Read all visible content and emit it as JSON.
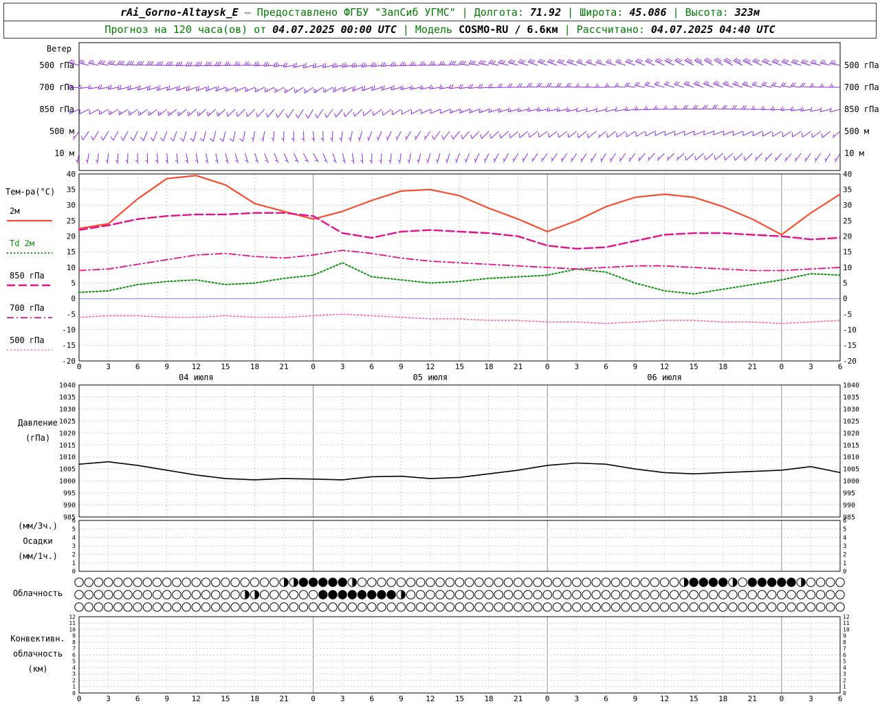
{
  "header": {
    "station": "rAi_Gorno-Altaysk_E",
    "dash": "—",
    "provided": "Предоставлено ФГБУ \"ЗапСиб УГМС\"",
    "sep": "|",
    "lon_label": "Долгота:",
    "lon": "71.92",
    "lat_label": "Широта:",
    "lat": "45.086",
    "alt_label": "Высота:",
    "alt": "323м",
    "line2": {
      "forecast_label": "Прогноз на 120 часа(ов) от",
      "forecast_time": "04.07.2025 00:00 UTC",
      "sep": "|",
      "model_label": "Модель",
      "model": "COSMO-RU / 6.6км",
      "calc_label": "Рассчитано:",
      "calc_time": "04.07.2025 04:40 UTC"
    }
  },
  "colors": {
    "header_text": "#007a00",
    "wind_barbs": "#8a2be2",
    "t2m": "#f74d2e",
    "td2m": "#0a8f0a",
    "t850": "#e60f8a",
    "t700": "#e60f8a",
    "t500": "#ff62b0",
    "pressure": "#000000",
    "zero_line": "#8080ff"
  },
  "panels": {
    "wind": {
      "title": "Ветер"
    },
    "temperature": {
      "title": "Тем-ра(°C)",
      "legend": [
        {
          "label": "2м",
          "text_color": "#000000"
        },
        {
          "label": "Td 2м",
          "text_color": "#0a8f0a"
        },
        {
          "label": "850 гПа",
          "text_color": "#000000"
        },
        {
          "label": "700 гПа",
          "text_color": "#000000"
        },
        {
          "label": "500 гПа",
          "text_color": "#000000"
        }
      ]
    },
    "pressure": {
      "title1": "Давление",
      "title2": "(гПа)"
    },
    "precip": {
      "title1": "(мм/3ч.)",
      "title2": "Осадки",
      "title3": "(мм/1ч.)"
    },
    "cloud": {
      "title": "Облачность"
    },
    "convective": {
      "title1": "Конвективн.",
      "title2": "облачность",
      "title3": "(км)"
    }
  },
  "time_axis": {
    "start_hour": 0,
    "end_hour": 78,
    "step": 3,
    "labels": [
      "0",
      "3",
      "6",
      "9",
      "12",
      "15",
      "18",
      "21",
      "0",
      "3",
      "6",
      "9",
      "12",
      "15",
      "18",
      "21",
      "0",
      "3",
      "6",
      "9",
      "12",
      "15",
      "18",
      "21",
      "0",
      "3",
      "6"
    ],
    "dates": [
      {
        "label": "04 июля",
        "hour": 12
      },
      {
        "label": "05 июля",
        "hour": 36
      },
      {
        "label": "06 июля",
        "hour": 60
      }
    ]
  },
  "chart_data": [
    {
      "id": "wind",
      "type": "wind-barbs",
      "color": "#8a2be2",
      "key_hours": [
        0,
        6,
        12,
        18,
        24,
        30,
        36,
        42,
        48,
        54,
        60,
        66,
        72,
        78
      ],
      "levels": [
        {
          "label": "500 гПа",
          "dir": [
            285,
            275,
            265,
            270,
            255,
            260,
            270,
            280,
            290,
            285,
            295,
            300,
            290,
            280
          ],
          "spd": [
            25,
            30,
            30,
            25,
            20,
            25,
            25,
            30,
            30,
            25,
            30,
            35,
            30,
            25
          ]
        },
        {
          "label": "700 гПа",
          "dir": [
            265,
            255,
            250,
            245,
            235,
            250,
            260,
            265,
            275,
            270,
            285,
            290,
            280,
            270
          ],
          "spd": [
            15,
            20,
            20,
            15,
            15,
            20,
            15,
            20,
            20,
            15,
            20,
            25,
            20,
            15
          ]
        },
        {
          "label": "850 гПа",
          "dir": [
            245,
            235,
            230,
            225,
            210,
            230,
            245,
            250,
            260,
            255,
            270,
            275,
            265,
            255
          ],
          "spd": [
            10,
            15,
            15,
            10,
            10,
            10,
            10,
            15,
            15,
            10,
            15,
            20,
            15,
            10
          ]
        },
        {
          "label": "500 м",
          "dir": [
            215,
            205,
            195,
            190,
            175,
            200,
            215,
            225,
            235,
            230,
            245,
            250,
            240,
            230
          ],
          "spd": [
            7,
            10,
            10,
            7,
            5,
            7,
            7,
            10,
            10,
            7,
            10,
            12,
            10,
            7
          ]
        },
        {
          "label": "10 м",
          "dir": [
            190,
            180,
            170,
            160,
            150,
            180,
            195,
            205,
            215,
            210,
            225,
            230,
            220,
            210
          ],
          "spd": [
            5,
            7,
            7,
            5,
            3,
            5,
            5,
            7,
            7,
            5,
            7,
            8,
            7,
            5
          ]
        }
      ]
    },
    {
      "id": "temperature",
      "type": "line",
      "ylim": [
        -20,
        40
      ],
      "ystep": 5,
      "x_hours": [
        0,
        3,
        6,
        9,
        12,
        15,
        18,
        21,
        24,
        27,
        30,
        33,
        36,
        39,
        42,
        45,
        48,
        51,
        54,
        57,
        60,
        63,
        66,
        69,
        72,
        75,
        78
      ],
      "series": [
        {
          "name": "2м",
          "color": "#f74d2e",
          "dash": "",
          "width": 2.2,
          "values": [
            22.5,
            24,
            32,
            38.5,
            39.5,
            36.5,
            30.5,
            28,
            25.5,
            28,
            31.5,
            34.5,
            35,
            33,
            29,
            25.5,
            21.5,
            25,
            29.5,
            32.5,
            33.5,
            32.5,
            29.5,
            25.5,
            20.5,
            27.5,
            33.5
          ]
        },
        {
          "name": "Td 2м",
          "color": "#0a8f0a",
          "dash": "2 3",
          "width": 2,
          "values": [
            2,
            2.5,
            4.5,
            5.5,
            6,
            4.5,
            5,
            6.5,
            7.5,
            11.5,
            7,
            6,
            5,
            5.5,
            6.5,
            7,
            7.5,
            9.5,
            8.5,
            5,
            2.5,
            1.5,
            3,
            4.5,
            6,
            8,
            7.5
          ]
        },
        {
          "name": "850 гПа",
          "color": "#e60f8a",
          "dash": "12 5",
          "width": 2.4,
          "values": [
            22,
            23.5,
            25.5,
            26.5,
            27,
            27,
            27.5,
            27.5,
            26.5,
            21,
            19.5,
            21.5,
            22,
            21.5,
            21,
            20,
            17,
            16,
            16.5,
            18.5,
            20.5,
            21,
            21,
            20.5,
            20,
            19,
            19.5
          ]
        },
        {
          "name": "700 гПа",
          "color": "#e60f8a",
          "dash": "10 4 2 4",
          "width": 1.8,
          "values": [
            9,
            9.5,
            11,
            12.5,
            14,
            14.5,
            13.5,
            13,
            14,
            15.5,
            14.5,
            13,
            12,
            11.5,
            11,
            10.5,
            10,
            9.5,
            10,
            10.5,
            10.5,
            10,
            9.5,
            9,
            9,
            9.5,
            10
          ]
        },
        {
          "name": "500 гПа",
          "color": "#ff62b0",
          "dash": "2 3",
          "width": 1.6,
          "values": [
            -6,
            -5.5,
            -5.5,
            -6,
            -6,
            -5.5,
            -6,
            -6,
            -5.5,
            -5,
            -5.5,
            -6,
            -6.5,
            -6.5,
            -7,
            -7,
            -7.5,
            -7.5,
            -8,
            -7.5,
            -7,
            -7,
            -7.5,
            -7.5,
            -8,
            -7.5,
            -7
          ]
        }
      ]
    },
    {
      "id": "pressure",
      "type": "line",
      "ylim": [
        985,
        1040
      ],
      "ystep": 5,
      "x_hours": [
        0,
        3,
        6,
        9,
        12,
        15,
        18,
        21,
        24,
        27,
        30,
        33,
        36,
        39,
        42,
        45,
        48,
        51,
        54,
        57,
        60,
        63,
        66,
        69,
        72,
        75,
        78
      ],
      "series": [
        {
          "name": "Давление",
          "color": "#000000",
          "dash": "",
          "width": 1.6,
          "values": [
            1007,
            1008,
            1006.5,
            1004.5,
            1002.5,
            1001,
            1000.5,
            1001,
            1000.8,
            1000.5,
            1001.8,
            1002,
            1001,
            1001.5,
            1003,
            1004.5,
            1006.5,
            1007.5,
            1007,
            1005,
            1003.5,
            1003,
            1003.5,
            1004,
            1004.5,
            1006,
            1003.5
          ]
        }
      ]
    },
    {
      "id": "precip",
      "type": "bar",
      "ylim": [
        0,
        6
      ],
      "ystep": 1,
      "x_hours": [
        0,
        3,
        6,
        9,
        12,
        15,
        18,
        21,
        24,
        27,
        30,
        33,
        36,
        39,
        42,
        45,
        48,
        51,
        54,
        57,
        60,
        63,
        66,
        69,
        72,
        75,
        78
      ],
      "values": [
        0,
        0,
        0,
        0,
        0,
        0,
        0,
        0,
        0,
        0,
        0,
        0,
        0,
        0,
        0,
        0,
        0,
        0,
        0,
        0,
        0,
        0,
        0,
        0,
        0,
        0,
        0
      ]
    },
    {
      "id": "cloud",
      "type": "symbol-rows",
      "okta_rows": [
        "0000000000000000000004488888400000000000000000000000000000000048888408888840000",
        "0000000000000000044000000888888884000000000000000000000000000000000000000000000",
        "0000000000000000000000000000000000000000000000000000000000000000000000000000000"
      ]
    },
    {
      "id": "convective",
      "type": "bar",
      "ylim": [
        0,
        12
      ],
      "ystep": 1,
      "values": []
    }
  ]
}
